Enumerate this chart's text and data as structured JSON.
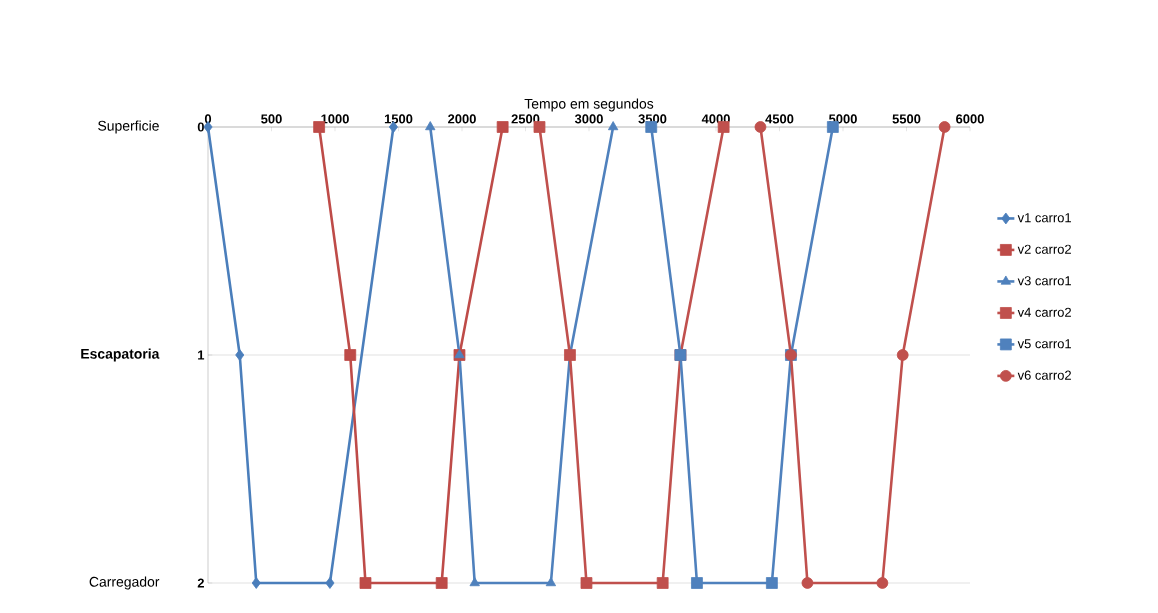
{
  "chart_data": {
    "type": "line",
    "xlabel": "Tempo em segundos",
    "xlim": [
      0,
      6000
    ],
    "xticks": [
      0,
      500,
      1000,
      1500,
      2000,
      2500,
      3000,
      3500,
      4000,
      4500,
      5000,
      5500,
      6000
    ],
    "ylim": [
      2,
      0
    ],
    "yticks": [
      0,
      1,
      2
    ],
    "grid": "y",
    "legend": "right",
    "annotations": [
      "Superficie",
      "**Escapatoria**",
      "Carregador"
    ],
    "series": [
      {
        "name": "v1 carro1",
        "color": "#4a7ebb",
        "marker": "diamond",
        "x": [
          0,
          250,
          380,
          960,
          1460
        ],
        "values": [
          0,
          1,
          2,
          2,
          0
        ]
      },
      {
        "name": "v2 carro2",
        "color": "#be4b48",
        "marker": "square",
        "x": [
          875,
          1120,
          1240,
          1840,
          1980,
          2320
        ],
        "values": [
          0,
          1,
          2,
          2,
          1,
          0
        ]
      },
      {
        "name": "v3 carro1",
        "color": "#4f81bd",
        "marker": "triangle",
        "x": [
          1750,
          1980,
          2100,
          2700,
          2850,
          3190
        ],
        "values": [
          0,
          1,
          2,
          2,
          1,
          0
        ]
      },
      {
        "name": "v4 carro2",
        "color": "#c0504d",
        "marker": "square",
        "x": [
          2610,
          2850,
          2980,
          3580,
          3720,
          4060
        ],
        "values": [
          0,
          1,
          2,
          2,
          1,
          0
        ]
      },
      {
        "name": "v5 carro1",
        "color": "#4f81bd",
        "marker": "square",
        "x": [
          3490,
          3720,
          3850,
          4440,
          4590,
          4920
        ],
        "values": [
          0,
          1,
          2,
          2,
          1,
          0
        ]
      },
      {
        "name": "v6 carro2",
        "color": "#c0504d",
        "marker": "circle",
        "x": [
          4350,
          4590,
          4720,
          5310,
          5470,
          5800
        ],
        "values": [
          0,
          1,
          2,
          2,
          1,
          0
        ]
      }
    ]
  }
}
